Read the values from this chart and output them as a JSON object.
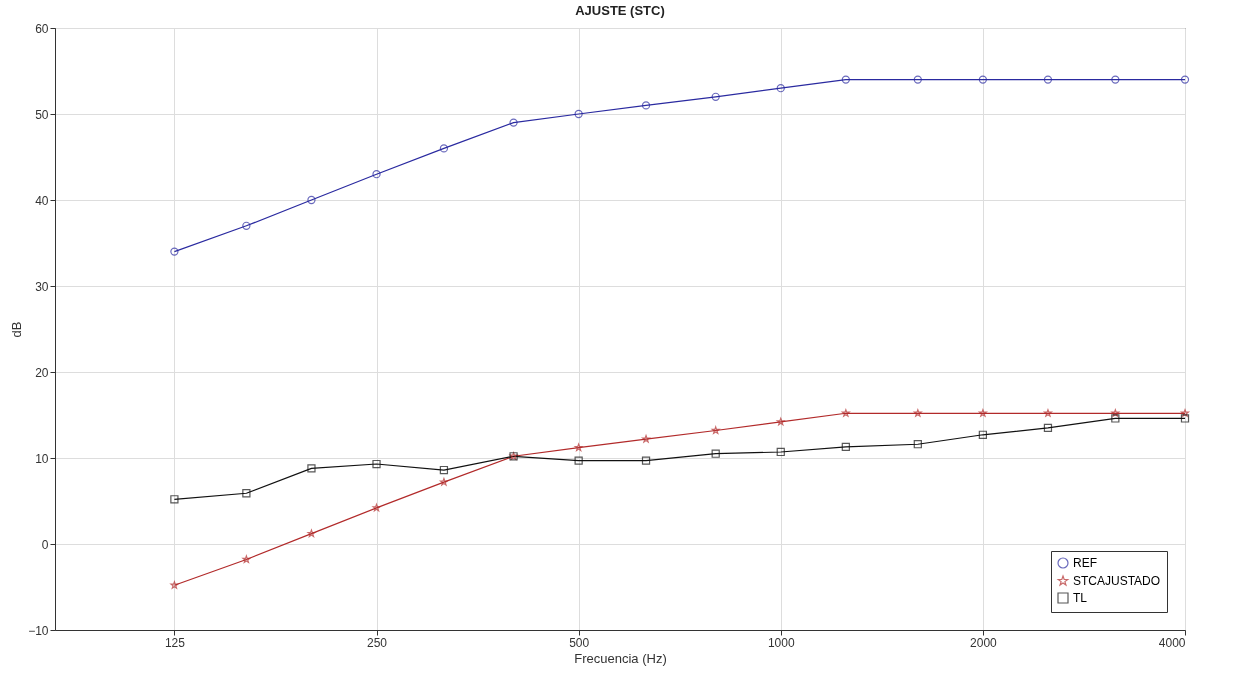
{
  "chart_data": {
    "type": "line",
    "title": "AJUSTE (STC)",
    "xlabel": "Frecuencia (Hz)",
    "ylabel": "dB",
    "x": [
      125,
      160,
      200,
      250,
      315,
      400,
      500,
      630,
      800,
      1000,
      1250,
      1600,
      2000,
      2500,
      3150,
      4000
    ],
    "log": "x",
    "xlim": [
      83,
      4000
    ],
    "xticks": [
      125,
      250,
      500,
      1000,
      2000,
      4000
    ],
    "ylim": [
      -10,
      60
    ],
    "yticks": [
      -10,
      0,
      10,
      20,
      30,
      40,
      50,
      60
    ],
    "grid": true,
    "legend": "bottom right",
    "series": [
      {
        "name": "REF",
        "color": "#2a2aa0",
        "marker": "circle",
        "values": [
          34,
          37,
          40,
          43,
          46,
          49,
          50,
          51,
          52,
          53,
          54,
          54,
          54,
          54,
          54,
          54
        ]
      },
      {
        "name": "STCAJUSTADO",
        "color": "#b22a2a",
        "marker": "star",
        "values": [
          -4.8,
          -1.8,
          1.2,
          4.2,
          7.2,
          10.2,
          11.2,
          12.2,
          13.2,
          14.2,
          15.2,
          15.2,
          15.2,
          15.2,
          15.2,
          15.2
        ]
      },
      {
        "name": "TL",
        "color": "#111111",
        "marker": "square",
        "values": [
          5.2,
          5.9,
          8.8,
          9.3,
          8.6,
          10.2,
          9.7,
          9.7,
          10.5,
          10.7,
          11.3,
          11.6,
          12.7,
          13.5,
          14.6,
          14.6
        ]
      }
    ]
  }
}
